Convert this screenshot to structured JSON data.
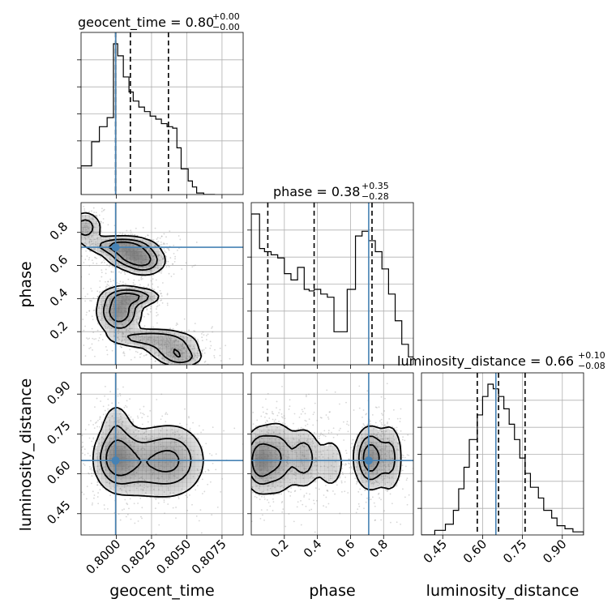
{
  "chart_data": {
    "type": "corner",
    "parameters": [
      "geocent_time",
      "phase",
      "luminosity_distance"
    ],
    "titles": [
      {
        "param": "geocent_time",
        "text": "geocent_time = 0.80",
        "sup": "+0.00",
        "sub": "−0.00"
      },
      {
        "param": "phase",
        "text": "phase = 0.38",
        "sup": "+0.35",
        "sub": "−0.28"
      },
      {
        "param": "luminosity_distance",
        "text": "luminosity_distance = 0.66",
        "sup": "+0.10",
        "sub": "−0.08"
      }
    ],
    "axis_labels": {
      "x": [
        "geocent_time",
        "phase",
        "luminosity_distance"
      ],
      "y": [
        "phase",
        "luminosity_distance"
      ]
    },
    "ranges": {
      "geocent_time": [
        0.7975,
        0.809
      ],
      "phase": [
        0.0,
        0.98
      ],
      "luminosity_distance": [
        0.37,
        0.98
      ]
    },
    "ticks": {
      "geocent_time": [
        0.8,
        0.8025,
        0.805,
        0.8075
      ],
      "geocent_time_labels": [
        "0.8000",
        "0.8025",
        "0.8050",
        "0.8075"
      ],
      "phase": [
        0.2,
        0.4,
        0.6,
        0.8
      ],
      "phase_labels": [
        "0.2",
        "0.4",
        "0.6",
        "0.8"
      ],
      "luminosity_distance": [
        0.45,
        0.6,
        0.75,
        0.9
      ],
      "luminosity_distance_labels": [
        "0.45",
        "0.60",
        "0.75",
        "0.90"
      ]
    },
    "truths": {
      "geocent_time": 0.79995,
      "phase": 0.71,
      "luminosity_distance": 0.65
    },
    "quantiles": {
      "geocent_time": [
        0.79995,
        0.801,
        0.8037
      ],
      "phase": [
        0.1,
        0.38,
        0.73
      ],
      "luminosity_distance": [
        0.58,
        0.66,
        0.76
      ]
    },
    "histograms": {
      "geocent_time": {
        "edges": [
          0.7975,
          0.79825,
          0.7988,
          0.79935,
          0.7998,
          0.8001,
          0.8005,
          0.8009,
          0.8012,
          0.8016,
          0.802,
          0.8024,
          0.8028,
          0.8032,
          0.8036,
          0.804,
          0.8043,
          0.8046,
          0.8051,
          0.8054,
          0.8057,
          0.8062,
          0.807
        ],
        "counts": [
          0.19,
          0.35,
          0.45,
          0.51,
          1.0,
          0.92,
          0.78,
          0.68,
          0.62,
          0.58,
          0.55,
          0.52,
          0.5,
          0.47,
          0.45,
          0.44,
          0.31,
          0.17,
          0.09,
          0.05,
          0.01,
          0.0
        ]
      },
      "phase": {
        "edges": [
          0.0,
          0.05,
          0.08,
          0.12,
          0.16,
          0.2,
          0.24,
          0.28,
          0.32,
          0.35,
          0.38,
          0.42,
          0.46,
          0.5,
          0.54,
          0.58,
          0.63,
          0.67,
          0.71,
          0.75,
          0.79,
          0.83,
          0.87,
          0.91,
          0.95,
          0.98
        ],
        "counts": [
          0.96,
          0.74,
          0.72,
          0.7,
          0.68,
          0.58,
          0.54,
          0.62,
          0.48,
          0.47,
          0.48,
          0.45,
          0.43,
          0.21,
          0.21,
          0.48,
          0.82,
          0.85,
          0.79,
          0.72,
          0.61,
          0.45,
          0.28,
          0.13,
          0.05
        ]
      },
      "luminosity_distance": {
        "edges": [
          0.37,
          0.42,
          0.46,
          0.49,
          0.51,
          0.53,
          0.55,
          0.58,
          0.6,
          0.62,
          0.64,
          0.66,
          0.68,
          0.7,
          0.72,
          0.74,
          0.76,
          0.78,
          0.81,
          0.83,
          0.86,
          0.88,
          0.91,
          0.94,
          0.98
        ],
        "counts": [
          0.0,
          0.03,
          0.07,
          0.16,
          0.3,
          0.44,
          0.62,
          0.78,
          0.9,
          0.98,
          0.95,
          0.9,
          0.82,
          0.72,
          0.62,
          0.5,
          0.4,
          0.31,
          0.24,
          0.16,
          0.11,
          0.06,
          0.04,
          0.02
        ]
      }
    },
    "density_blobs": {
      "phase_vs_geocent_time": [
        {
          "x": 0.7978,
          "y": 0.83,
          "sx": 0.0006,
          "sy": 0.05,
          "w": 0.6
        },
        {
          "x": 0.8003,
          "y": 0.72,
          "sx": 0.0012,
          "sy": 0.03,
          "w": 0.8
        },
        {
          "x": 0.8012,
          "y": 0.66,
          "sx": 0.001,
          "sy": 0.04,
          "w": 0.9
        },
        {
          "x": 0.802,
          "y": 0.61,
          "sx": 0.0008,
          "sy": 0.04,
          "w": 0.5
        },
        {
          "x": 0.8002,
          "y": 0.32,
          "sx": 0.0008,
          "sy": 0.07,
          "w": 1.0
        },
        {
          "x": 0.8012,
          "y": 0.41,
          "sx": 0.001,
          "sy": 0.03,
          "w": 0.7
        },
        {
          "x": 0.8024,
          "y": 0.16,
          "sx": 0.0015,
          "sy": 0.03,
          "w": 0.6
        },
        {
          "x": 0.804,
          "y": 0.1,
          "sx": 0.001,
          "sy": 0.04,
          "w": 0.6
        },
        {
          "x": 0.8046,
          "y": 0.04,
          "sx": 0.0008,
          "sy": 0.03,
          "w": 0.5
        }
      ],
      "luminosity_distance_vs_geocent_time": [
        {
          "x": 0.8,
          "y": 0.66,
          "sx": 0.0008,
          "sy": 0.06,
          "w": 1.0
        },
        {
          "x": 0.8016,
          "y": 0.64,
          "sx": 0.0014,
          "sy": 0.07,
          "w": 0.6
        },
        {
          "x": 0.804,
          "y": 0.65,
          "sx": 0.0012,
          "sy": 0.07,
          "w": 0.8
        },
        {
          "x": 0.8,
          "y": 0.79,
          "sx": 0.0006,
          "sy": 0.05,
          "w": 0.3
        }
      ],
      "luminosity_distance_vs_phase": [
        {
          "x": 0.05,
          "y": 0.65,
          "sx": 0.05,
          "sy": 0.06,
          "w": 1.0
        },
        {
          "x": 0.16,
          "y": 0.66,
          "sx": 0.06,
          "sy": 0.07,
          "w": 0.7
        },
        {
          "x": 0.32,
          "y": 0.66,
          "sx": 0.05,
          "sy": 0.06,
          "w": 0.6
        },
        {
          "x": 0.48,
          "y": 0.64,
          "sx": 0.05,
          "sy": 0.06,
          "w": 0.3
        },
        {
          "x": 0.72,
          "y": 0.66,
          "sx": 0.05,
          "sy": 0.06,
          "w": 1.0
        },
        {
          "x": 0.84,
          "y": 0.66,
          "sx": 0.04,
          "sy": 0.07,
          "w": 0.5
        }
      ]
    },
    "contour_levels": [
      0.12,
      0.35,
      0.62
    ],
    "colors": {
      "hist": "#000000",
      "truth": "#4682b4",
      "density": "#6e6e6e",
      "scatter": "#8c8c8c"
    }
  }
}
